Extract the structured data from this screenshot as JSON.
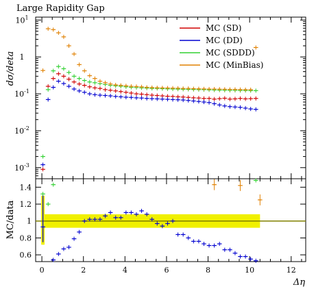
{
  "chart_data": [
    {
      "type": "scatter",
      "panel": "main",
      "title": "Large Rapidity Gap",
      "ylabel": "dσ/deta",
      "yscale": "log",
      "ylim": [
        0.0005,
        12
      ],
      "xlim": [
        -0.3,
        12.7
      ],
      "yticks": [
        {
          "label": "10",
          "sup": "-3",
          "value": 0.001
        },
        {
          "label": "10",
          "sup": "-2",
          "value": 0.01
        },
        {
          "label": "10",
          "sup": "-1",
          "value": 0.1
        },
        {
          "label": "1",
          "sup": "",
          "value": 1
        },
        {
          "label": "10",
          "sup": "1",
          "value": 10
        }
      ],
      "legend_position": "top-right",
      "series": [
        {
          "name": "MC (SD)",
          "color": "#d00000",
          "x": [
            0.05,
            0.3,
            0.55,
            0.8,
            1.05,
            1.3,
            1.55,
            1.8,
            2.05,
            2.3,
            2.55,
            2.8,
            3.05,
            3.3,
            3.55,
            3.8,
            4.05,
            4.3,
            4.55,
            4.8,
            5.05,
            5.3,
            5.55,
            5.8,
            6.05,
            6.3,
            6.55,
            6.8,
            7.05,
            7.3,
            7.55,
            7.8,
            8.05,
            8.3,
            8.55,
            8.8,
            9.05,
            9.3,
            9.55,
            9.8,
            10.05,
            10.3
          ],
          "y": [
            0.0009,
            0.16,
            0.26,
            0.35,
            0.3,
            0.25,
            0.21,
            0.185,
            0.17,
            0.155,
            0.145,
            0.14,
            0.13,
            0.125,
            0.12,
            0.115,
            0.11,
            0.105,
            0.1,
            0.098,
            0.095,
            0.092,
            0.09,
            0.088,
            0.086,
            0.085,
            0.083,
            0.082,
            0.08,
            0.078,
            0.077,
            0.075,
            0.075,
            0.072,
            0.074,
            0.076,
            0.072,
            0.073,
            0.075,
            0.073,
            0.074,
            0.075
          ]
        },
        {
          "name": "MC (DD)",
          "color": "#0000d0",
          "x": [
            0.05,
            0.3,
            0.55,
            0.8,
            1.05,
            1.3,
            1.55,
            1.8,
            2.05,
            2.3,
            2.55,
            2.8,
            3.05,
            3.3,
            3.55,
            3.8,
            4.05,
            4.3,
            4.55,
            4.8,
            5.05,
            5.3,
            5.55,
            5.8,
            6.05,
            6.3,
            6.55,
            6.8,
            7.05,
            7.3,
            7.55,
            7.8,
            8.05,
            8.3,
            8.55,
            8.8,
            9.05,
            9.3,
            9.55,
            9.8,
            10.05,
            10.3
          ],
          "y": [
            0.0012,
            0.07,
            0.15,
            0.22,
            0.19,
            0.16,
            0.135,
            0.12,
            0.11,
            0.1,
            0.095,
            0.092,
            0.09,
            0.088,
            0.085,
            0.083,
            0.081,
            0.08,
            0.078,
            0.077,
            0.075,
            0.074,
            0.073,
            0.072,
            0.071,
            0.07,
            0.069,
            0.068,
            0.066,
            0.064,
            0.062,
            0.06,
            0.058,
            0.054,
            0.05,
            0.047,
            0.045,
            0.044,
            0.043,
            0.041,
            0.039,
            0.038
          ]
        },
        {
          "name": "MC (SDDD)",
          "color": "#30d030",
          "x": [
            0.05,
            0.3,
            0.55,
            0.8,
            1.05,
            1.3,
            1.55,
            1.8,
            2.05,
            2.3,
            2.55,
            2.8,
            3.05,
            3.3,
            3.55,
            3.8,
            4.05,
            4.3,
            4.55,
            4.8,
            5.05,
            5.3,
            5.55,
            5.8,
            6.05,
            6.3,
            6.55,
            6.8,
            7.05,
            7.3,
            7.55,
            7.8,
            8.05,
            8.3,
            8.55,
            8.8,
            9.05,
            9.3,
            9.55,
            9.8,
            10.05,
            10.3
          ],
          "y": [
            0.002,
            0.13,
            0.42,
            0.55,
            0.48,
            0.38,
            0.3,
            0.26,
            0.23,
            0.21,
            0.2,
            0.19,
            0.18,
            0.17,
            0.165,
            0.16,
            0.155,
            0.15,
            0.148,
            0.145,
            0.143,
            0.14,
            0.14,
            0.138,
            0.136,
            0.135,
            0.134,
            0.133,
            0.132,
            0.131,
            0.13,
            0.13,
            0.128,
            0.127,
            0.126,
            0.125,
            0.124,
            0.124,
            0.123,
            0.123,
            0.122,
            0.122
          ]
        },
        {
          "name": "MC (MinBias)",
          "color": "#e08000",
          "x": [
            0.05,
            0.3,
            0.55,
            0.8,
            1.05,
            1.3,
            1.55,
            1.8,
            2.05,
            2.3,
            2.55,
            2.8,
            3.05,
            3.3,
            3.55,
            3.8,
            4.05,
            4.3,
            4.55,
            4.8,
            5.05,
            5.3,
            5.55,
            5.8,
            6.05,
            6.3,
            6.55,
            6.8,
            7.05,
            7.3,
            7.55,
            7.8,
            8.05,
            8.3,
            8.55,
            8.8,
            9.05,
            9.3,
            9.55,
            9.8,
            10.05,
            10.3
          ],
          "y": [
            0.43,
            5.8,
            5.5,
            4.5,
            3.5,
            2.0,
            1.2,
            0.62,
            0.42,
            0.31,
            0.26,
            0.22,
            0.2,
            0.185,
            0.175,
            0.17,
            0.165,
            0.16,
            0.158,
            0.155,
            0.15,
            0.148,
            0.146,
            0.145,
            0.144,
            0.143,
            0.142,
            0.14,
            0.14,
            0.138,
            0.137,
            0.136,
            0.135,
            0.135,
            0.134,
            0.133,
            0.132,
            0.132,
            0.131,
            0.13,
            0.13,
            1.8
          ]
        }
      ]
    },
    {
      "type": "scatter",
      "panel": "ratio",
      "ylabel": "MC/data",
      "xlabel": "Δη",
      "ylim": [
        0.52,
        1.5
      ],
      "xlim": [
        -0.3,
        12.7
      ],
      "yticks": [
        0.6,
        0.8,
        1,
        1.2,
        1.4
      ],
      "xticks": [
        0,
        2,
        4,
        6,
        8,
        10,
        12
      ],
      "reference": {
        "value": 1,
        "band": [
          0.92,
          1.08
        ],
        "band_color": "#f0f000",
        "line_color": "#808000"
      },
      "series": [
        {
          "name": "MC (DD)",
          "color": "#0000d0",
          "x": [
            0.05,
            0.55,
            0.8,
            1.05,
            1.3,
            1.55,
            1.8,
            2.05,
            2.3,
            2.55,
            2.8,
            3.05,
            3.3,
            3.55,
            3.8,
            4.05,
            4.3,
            4.55,
            4.8,
            5.05,
            5.3,
            5.55,
            5.8,
            6.05,
            6.3,
            6.55,
            6.8,
            7.05,
            7.3,
            7.55,
            7.8,
            8.05,
            8.3,
            8.55,
            8.8,
            9.05,
            9.3,
            9.55,
            9.8,
            10.05,
            10.3
          ],
          "y": [
            0.93,
            0.54,
            0.61,
            0.67,
            0.69,
            0.79,
            0.87,
            1.0,
            1.02,
            1.02,
            1.02,
            1.06,
            1.1,
            1.04,
            1.04,
            1.1,
            1.1,
            1.08,
            1.12,
            1.08,
            1.02,
            0.97,
            0.94,
            0.97,
            1.0,
            0.84,
            0.84,
            0.8,
            0.76,
            0.76,
            0.73,
            0.71,
            0.71,
            0.73,
            0.66,
            0.66,
            0.62,
            0.58,
            0.58,
            0.55,
            0.53
          ]
        },
        {
          "name": "MC (SDDD)",
          "color": "#30d030",
          "x": [
            0.05,
            0.3,
            0.55,
            10.3
          ],
          "y": [
            1.32,
            1.2,
            1.43,
            1.48
          ]
        },
        {
          "name": "MC (MinBias)",
          "color": "#e08000",
          "x": [
            8.3,
            9.55,
            10.5
          ],
          "y": [
            1.43,
            1.42,
            1.25
          ]
        }
      ]
    }
  ]
}
